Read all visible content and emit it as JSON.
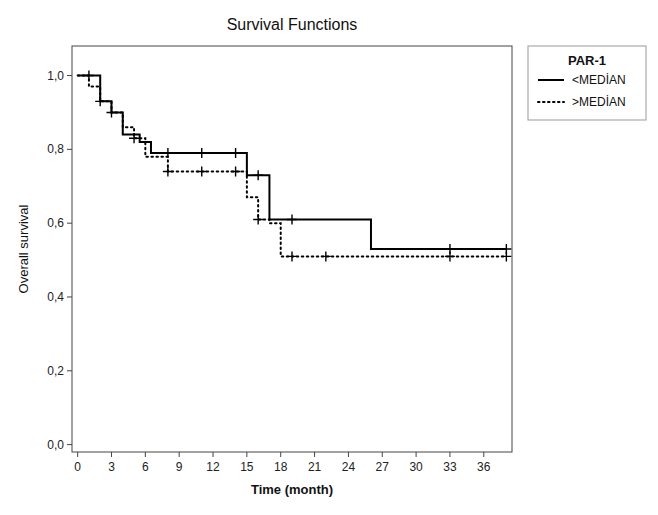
{
  "chart_data": {
    "type": "step",
    "title": "Survival Functions",
    "x_label": "Time (month)",
    "y_label": "Overall survival",
    "legend_title": "PAR-1",
    "legend": "right",
    "grid": false,
    "xlim": [
      -0.5,
      38.5
    ],
    "ylim": [
      -0.02,
      1.08
    ],
    "xticks": [
      0,
      3,
      6,
      9,
      12,
      15,
      18,
      21,
      24,
      27,
      30,
      33,
      36
    ],
    "yticks": [
      {
        "value": 0.0,
        "label": "0,0"
      },
      {
        "value": 0.2,
        "label": "0,2"
      },
      {
        "value": 0.4,
        "label": "0,4"
      },
      {
        "value": 0.6,
        "label": "0,6"
      },
      {
        "value": 0.8,
        "label": "0,8"
      },
      {
        "value": 1.0,
        "label": "1,0"
      }
    ],
    "series": [
      {
        "name": "<MEDİAN",
        "color": "#000000",
        "line_style": "solid",
        "marker": "plus",
        "x": [
          0,
          2,
          2,
          3,
          3,
          4,
          4,
          5.5,
          5.5,
          6.5,
          6.5,
          7.5,
          7.5,
          15,
          15,
          17,
          17,
          21,
          21,
          26,
          26,
          38
        ],
        "values": [
          1.0,
          1.0,
          0.93,
          0.93,
          0.9,
          0.9,
          0.84,
          0.84,
          0.82,
          0.82,
          0.79,
          0.79,
          0.79,
          0.79,
          0.73,
          0.73,
          0.61,
          0.61,
          0.61,
          0.61,
          0.53,
          0.53
        ],
        "censor_x": [
          1,
          3,
          8,
          11,
          14,
          16,
          19,
          33,
          38
        ],
        "censor_y": [
          1.0,
          0.9,
          0.79,
          0.79,
          0.79,
          0.73,
          0.61,
          0.53,
          0.53
        ]
      },
      {
        "name": ">MEDİAN",
        "color": "#000000",
        "line_style": "dotted",
        "marker": "plus",
        "x": [
          0,
          1,
          1,
          2,
          2,
          3,
          3,
          4,
          4,
          5,
          5,
          6,
          6,
          8,
          8,
          15,
          15,
          16,
          16,
          17,
          17,
          18,
          18,
          21,
          21,
          22,
          22,
          38
        ],
        "values": [
          1.0,
          1.0,
          0.97,
          0.97,
          0.93,
          0.93,
          0.9,
          0.9,
          0.86,
          0.86,
          0.83,
          0.83,
          0.78,
          0.78,
          0.74,
          0.74,
          0.67,
          0.67,
          0.61,
          0.61,
          0.6,
          0.6,
          0.51,
          0.51,
          0.51,
          0.51,
          0.51,
          0.51
        ],
        "censor_x": [
          2,
          5,
          8,
          11,
          14,
          16,
          19,
          22,
          33,
          38
        ],
        "censor_y": [
          0.93,
          0.83,
          0.74,
          0.74,
          0.74,
          0.61,
          0.51,
          0.51,
          0.51,
          0.51
        ]
      }
    ]
  }
}
